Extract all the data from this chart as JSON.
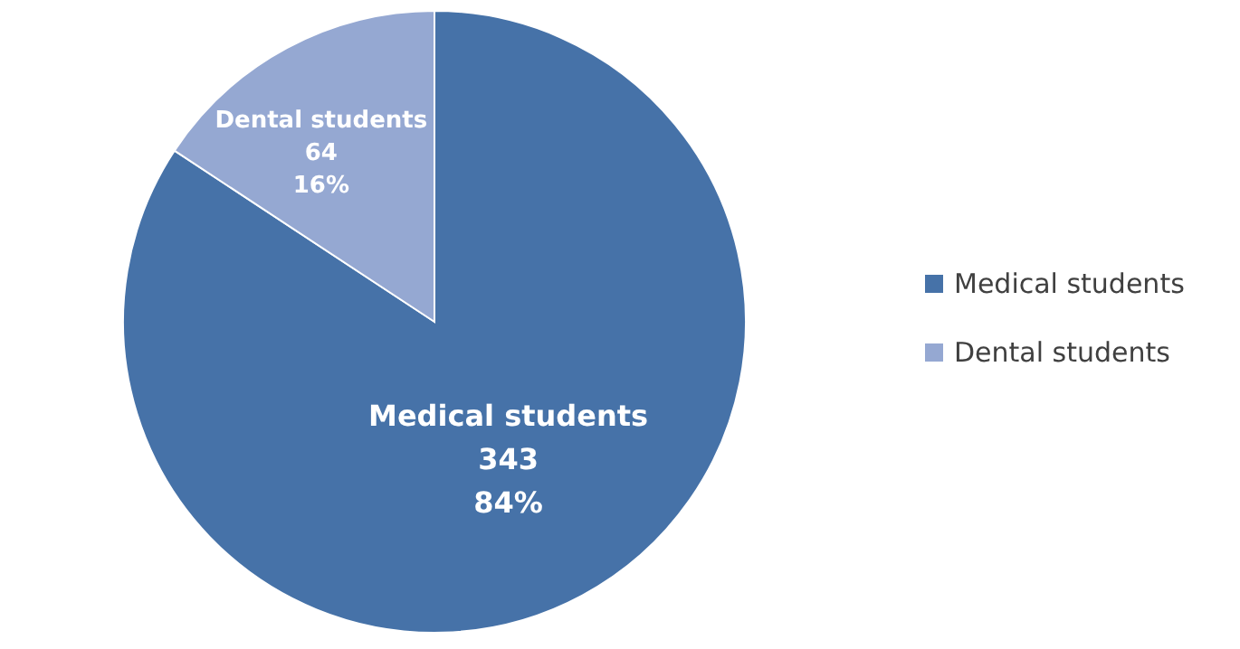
{
  "chart_data": {
    "type": "pie",
    "categories": [
      "Medical students",
      "Dental students"
    ],
    "values": [
      343,
      64
    ],
    "colors": [
      "#4672a8",
      "#95a8d2"
    ],
    "value_labels": [
      "343\n84%",
      "64\n16%"
    ],
    "legend": "right"
  }
}
